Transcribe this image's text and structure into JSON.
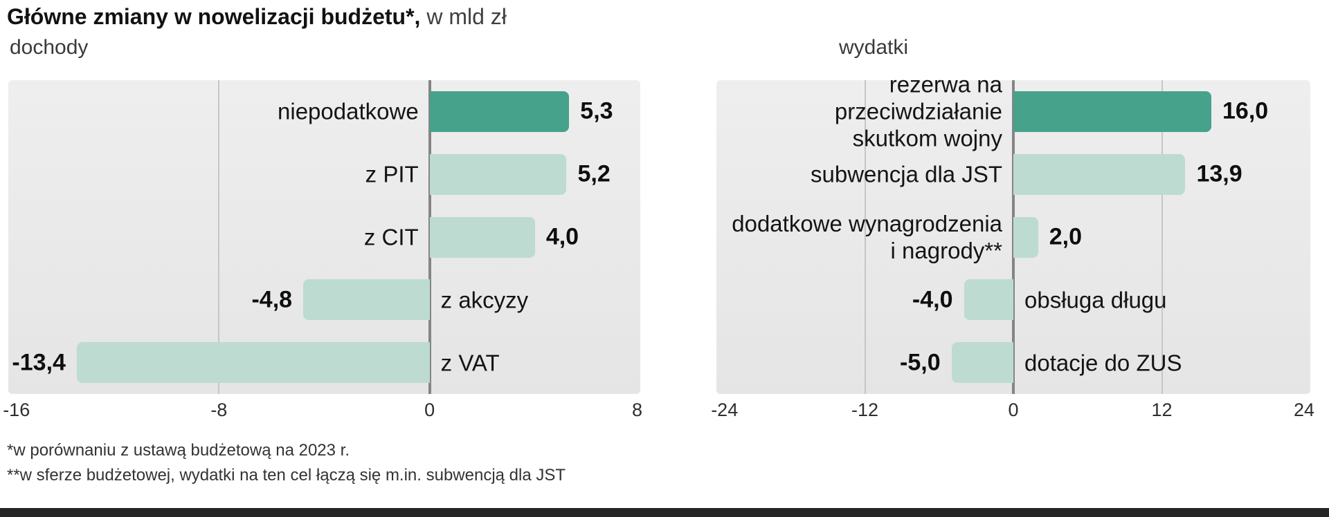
{
  "title": {
    "main": "Główne zmiany w nowelizacji budżetu*,",
    "unit": " w mld zł"
  },
  "footnotes": [
    "*w porównaniu z ustawą budżetową na 2023 r.",
    "**w sferze budżetowej, wydatki na ten cel łączą się m.in. subwencją dla JST"
  ],
  "colors": {
    "bar_default": "#bddbd1",
    "bar_highlight": "#46a28b",
    "panel_bg_top": "#eeeeee",
    "panel_bg_bottom": "#e5e5e5",
    "grid_line": "#c6c6c6",
    "zero_line": "#858585",
    "footer_bar": "#262626"
  },
  "chart_data": [
    {
      "type": "bar",
      "orientation": "horizontal",
      "subtitle": "dochody",
      "categories": [
        "niepodatkowe",
        "z PIT",
        "z CIT",
        "z akcyzy",
        "z VAT"
      ],
      "values": [
        5.3,
        5.2,
        4.0,
        -4.8,
        -13.4
      ],
      "value_labels": [
        "5,3",
        "5,2",
        "4,0",
        "-4,8",
        "-13,4"
      ],
      "highlight_index": 0,
      "xlim": [
        -16,
        8
      ],
      "xticks": [
        -16,
        -8,
        0,
        8
      ],
      "xtick_labels": [
        "-16",
        "-8",
        "0",
        "8"
      ],
      "grid": true,
      "legend": "none"
    },
    {
      "type": "bar",
      "orientation": "horizontal",
      "subtitle": "wydatki",
      "categories": [
        "rezerwa na przeciwdziałanie\nskutkom wojny",
        "subwencja dla JST",
        "dodatkowe wynagrodzenia\ni nagrody**",
        "obsługa długu",
        "dotacje do ZUS"
      ],
      "values": [
        16.0,
        13.9,
        2.0,
        -4.0,
        -5.0
      ],
      "value_labels": [
        "16,0",
        "13,9",
        "2,0",
        "-4,0",
        "-5,0"
      ],
      "highlight_index": 0,
      "xlim": [
        -24,
        24
      ],
      "xticks": [
        -24,
        -12,
        0,
        12,
        24
      ],
      "xtick_labels": [
        "-24",
        "-12",
        "0",
        "12",
        "24"
      ],
      "grid": true,
      "legend": "none"
    }
  ]
}
